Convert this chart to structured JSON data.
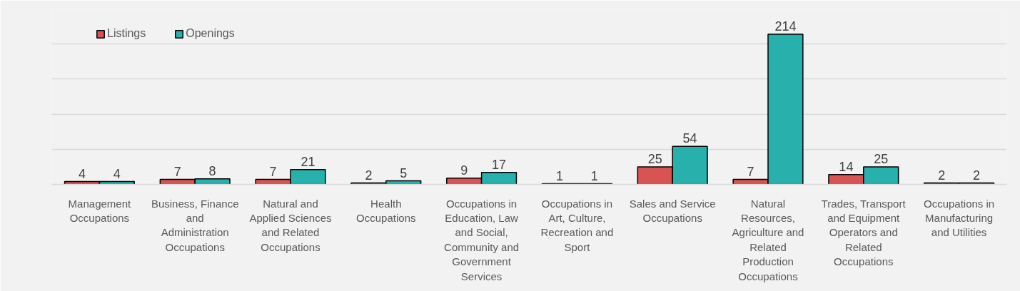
{
  "chart_data": {
    "type": "bar",
    "categories": [
      "Management Occupations",
      "Business, Finance and Administration Occupations",
      "Natural and Applied Sciences and Related Occupations",
      "Health Occupations",
      "Occupations in Education, Law and Social, Community and Government Services",
      "Occupations in Art, Culture, Recreation and Sport",
      "Sales and Service Occupations",
      "Natural Resources, Agriculture and Related Production Occupations",
      "Trades, Transport and Equipment Operators and Related Occupations",
      "Occupations in Manufacturing and Utilities"
    ],
    "series": [
      {
        "name": "Listings",
        "color": "#d75354",
        "values": [
          4,
          7,
          7,
          2,
          9,
          1,
          25,
          7,
          14,
          2
        ]
      },
      {
        "name": "Openings",
        "color": "#28b1ac",
        "values": [
          4,
          8,
          21,
          5,
          17,
          1,
          54,
          214,
          25,
          2
        ]
      }
    ],
    "ylim": [
      0,
      250
    ],
    "yticks": [
      {
        "value": 0,
        "label": null
      },
      {
        "value": 50,
        "label": null
      },
      {
        "value": 100,
        "label": null
      },
      {
        "value": 150,
        "label": null
      },
      {
        "value": 200,
        "label": null
      },
      {
        "value": 250,
        "label": null
      }
    ],
    "grid": "y",
    "legend": "top left",
    "data_labels": true,
    "tick_labels": "x"
  }
}
